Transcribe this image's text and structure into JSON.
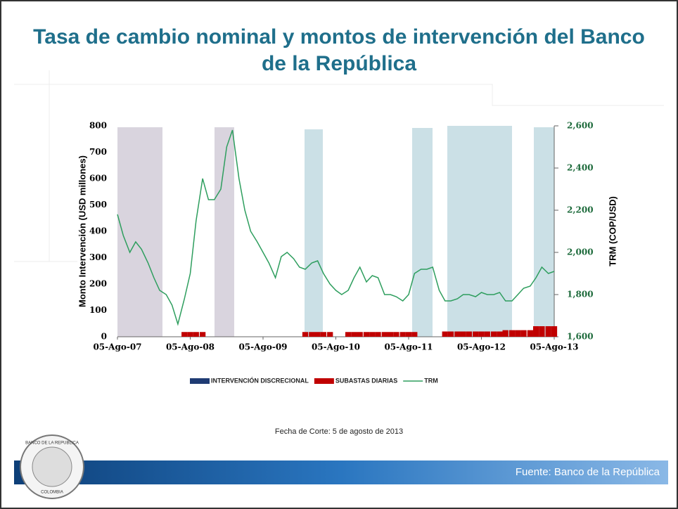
{
  "slide": {
    "footer": "Fuente: Banco de la República",
    "note": "Fecha de Corte: 5 de agosto de 2013",
    "logo": {
      "top": "BANCO DE LA REPUBLICA",
      "bottom": "COLOMBIA"
    }
  },
  "chart_data": {
    "type": "bar-line",
    "title": "Tasa de cambio nominal y montos de intervención del Banco de la República",
    "y_label": "Monto Intervención (USD millones)",
    "y2_label": "TRM (COP/USD)",
    "xlim": [
      2007.59,
      2013.59
    ],
    "xticks": [
      {
        "value": 2007.59,
        "label": "05-Ago-07"
      },
      {
        "value": 2008.59,
        "label": "05-Ago-08"
      },
      {
        "value": 2009.59,
        "label": "05-Ago-09"
      },
      {
        "value": 2010.59,
        "label": "05-Ago-10"
      },
      {
        "value": 2011.59,
        "label": "05-Ago-11"
      },
      {
        "value": 2012.59,
        "label": "05-Ago-12"
      },
      {
        "value": 2013.59,
        "label": "05-Ago-13"
      }
    ],
    "ylim": [
      0,
      800
    ],
    "yticks": [
      0,
      100,
      200,
      300,
      400,
      500,
      600,
      700,
      800
    ],
    "y2lim": [
      1600,
      2600
    ],
    "y2ticks": [
      {
        "value": 1600,
        "label": "1,600"
      },
      {
        "value": 1800,
        "label": "1,800"
      },
      {
        "value": 2000,
        "label": "2,000"
      },
      {
        "value": 2200,
        "label": "2,200"
      },
      {
        "value": 2400,
        "label": "2,400"
      },
      {
        "value": 2600,
        "label": "2,600"
      }
    ],
    "x": [
      2007.59,
      2007.67,
      2007.76,
      2007.84,
      2007.92,
      2008.01,
      2008.09,
      2008.17,
      2008.26,
      2008.34,
      2008.42,
      2008.51,
      2008.59,
      2008.67,
      2008.76,
      2008.84,
      2008.92,
      2009.01,
      2009.09,
      2009.17,
      2009.26,
      2009.34,
      2009.42,
      2009.51,
      2009.59,
      2009.67,
      2009.76,
      2009.84,
      2009.92,
      2010.01,
      2010.09,
      2010.17,
      2010.26,
      2010.34,
      2010.42,
      2010.51,
      2010.59,
      2010.67,
      2010.76,
      2010.84,
      2010.92,
      2011.01,
      2011.09,
      2011.17,
      2011.26,
      2011.34,
      2011.42,
      2011.51,
      2011.59,
      2011.67,
      2011.76,
      2011.84,
      2011.92,
      2012.01,
      2012.09,
      2012.17,
      2012.26,
      2012.34,
      2012.42,
      2012.51,
      2012.59,
      2012.67,
      2012.76,
      2012.84,
      2012.92,
      2013.01,
      2013.09,
      2013.17,
      2013.26,
      2013.34,
      2013.42,
      2013.51,
      2013.59
    ],
    "series": [
      {
        "name": "INTERVENCIÓN DISCRECIONAL",
        "color": "#1f3b73",
        "kind": "bar",
        "values": [
          0,
          0,
          0,
          0,
          0,
          0,
          0,
          0,
          0,
          0,
          0,
          0,
          0,
          0,
          0,
          0,
          0,
          0,
          0,
          0,
          0,
          0,
          0,
          0,
          0,
          0,
          0,
          0,
          0,
          0,
          0,
          0,
          0,
          0,
          0,
          0,
          0,
          0,
          0,
          0,
          0,
          0,
          0,
          0,
          0,
          0,
          0,
          0,
          0,
          0,
          0,
          0,
          0,
          0,
          0,
          0,
          0,
          0,
          0,
          0,
          0,
          0,
          0,
          0,
          0,
          0,
          0,
          0,
          0,
          0,
          0,
          0,
          0
        ]
      },
      {
        "name": "SUBASTAS DIARIAS",
        "color": "#c00000",
        "kind": "bar",
        "values": [
          0,
          0,
          0,
          0,
          0,
          0,
          0,
          0,
          0,
          0,
          0,
          18,
          18,
          18,
          18,
          0,
          0,
          0,
          0,
          0,
          0,
          0,
          0,
          0,
          0,
          0,
          0,
          0,
          0,
          0,
          0,
          18,
          18,
          18,
          18,
          18,
          0,
          0,
          18,
          18,
          18,
          18,
          18,
          18,
          18,
          18,
          18,
          18,
          18,
          18,
          0,
          0,
          0,
          0,
          20,
          20,
          20,
          20,
          20,
          20,
          20,
          20,
          20,
          20,
          25,
          25,
          25,
          25,
          25,
          40,
          40,
          40,
          40
        ]
      },
      {
        "name": "TRM",
        "color": "#2e9e5e",
        "kind": "line",
        "axis": "y2",
        "values": [
          2180,
          2080,
          2000,
          2050,
          2015,
          1950,
          1880,
          1820,
          1800,
          1750,
          1660,
          1780,
          1900,
          2150,
          2350,
          2250,
          2250,
          2300,
          2500,
          2580,
          2350,
          2200,
          2100,
          2050,
          2000,
          1950,
          1880,
          1980,
          2000,
          1970,
          1930,
          1920,
          1950,
          1960,
          1900,
          1850,
          1820,
          1800,
          1820,
          1880,
          1930,
          1860,
          1890,
          1880,
          1800,
          1800,
          1790,
          1770,
          1800,
          1900,
          1920,
          1920,
          1930,
          1820,
          1770,
          1770,
          1780,
          1800,
          1800,
          1790,
          1810,
          1800,
          1800,
          1810,
          1770,
          1770,
          1800,
          1830,
          1840,
          1880,
          1930,
          1900,
          1910
        ]
      }
    ]
  }
}
